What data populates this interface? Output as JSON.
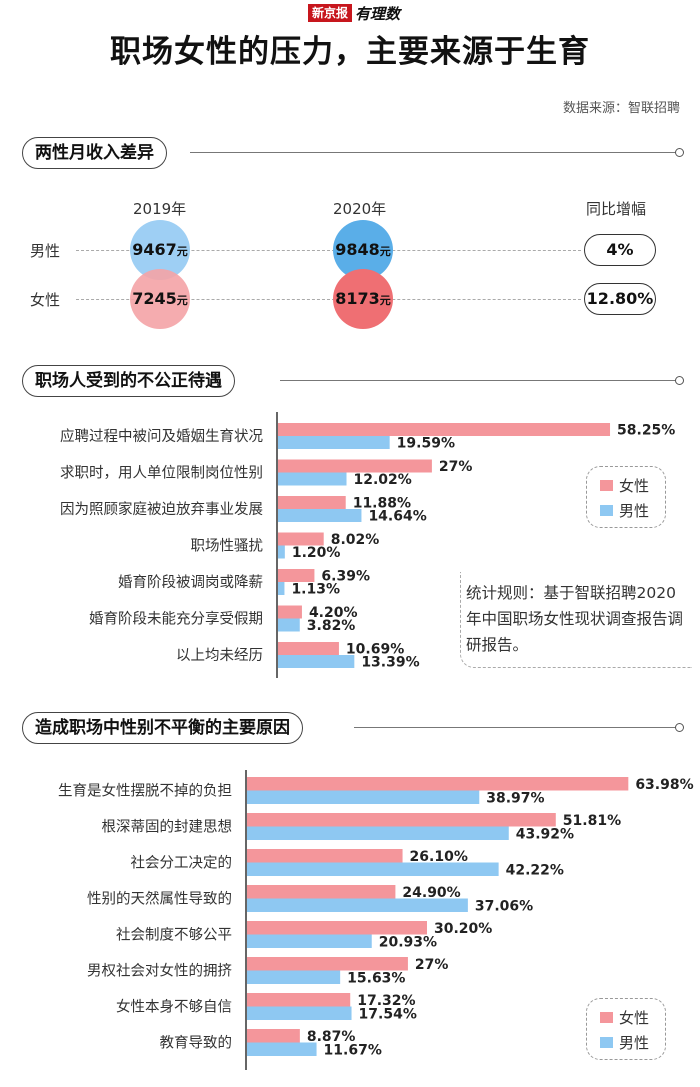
{
  "brand": {
    "box": "新京报",
    "text": "有理数"
  },
  "title": "职场女性的压力，主要来源于生育",
  "source": "数据来源：智联招聘",
  "colors": {
    "female": "#f4969b",
    "male": "#8ec8f2",
    "female_bubble": "#f28f93",
    "male_bubble_2019": "#9ecff4",
    "male_bubble_2020": "#5aaee8",
    "female_bubble_2020": "#ef6f73"
  },
  "income": {
    "section_title": "两性月收入差异",
    "year_2019": "2019年",
    "year_2020": "2020年",
    "yoy_label": "同比增幅",
    "male_label": "男性",
    "female_label": "女性",
    "male_2019": "9467",
    "male_2020": "9848",
    "female_2019": "7245",
    "female_2020": "8173",
    "unit": "元",
    "male_yoy": "4%",
    "female_yoy": "12.80%"
  },
  "unfair": {
    "section_title": "职场人受到的不公正待遇",
    "legend_female": "女性",
    "legend_male": "男性",
    "note": "统计规则：基于智联招聘2020年中国职场女性现状调查报告调研报告。"
  },
  "causes": {
    "section_title": "造成职场中性别不平衡的主要原因",
    "legend_female": "女性",
    "legend_male": "男性"
  },
  "chart_data": [
    {
      "type": "bar",
      "orientation": "horizontal",
      "title": "职场人受到的不公正待遇",
      "categories": [
        "应聘过程中被问及婚姻生育状况",
        "求职时，用人单位限制岗位性别",
        "因为照顾家庭被迫放弃事业发展",
        "职场性骚扰",
        "婚育阶段被调岗或降薪",
        "婚育阶段未能充分享受假期",
        "以上均未经历"
      ],
      "series": [
        {
          "name": "女性",
          "values": [
            58.25,
            27,
            11.88,
            8.02,
            6.39,
            4.2,
            10.69
          ],
          "labels": [
            "58.25%",
            "27%",
            "11.88%",
            "8.02%",
            "6.39%",
            "4.20%",
            "10.69%"
          ]
        },
        {
          "name": "男性",
          "values": [
            19.59,
            12.02,
            14.64,
            1.2,
            1.13,
            3.82,
            13.39
          ],
          "labels": [
            "19.59%",
            "12.02%",
            "14.64%",
            "1.20%",
            "1.13%",
            "3.82%",
            "13.39%"
          ]
        }
      ]
    },
    {
      "type": "bar",
      "orientation": "horizontal",
      "title": "造成职场中性别不平衡的主要原因",
      "categories": [
        "生育是女性摆脱不掉的负担",
        "根深蒂固的封建思想",
        "社会分工决定的",
        "性别的天然属性导致的",
        "社会制度不够公平",
        "男权社会对女性的拥挤",
        "女性本身不够自信",
        "教育导致的"
      ],
      "series": [
        {
          "name": "女性",
          "values": [
            63.98,
            51.81,
            26.1,
            24.9,
            30.2,
            27,
            17.32,
            8.87
          ],
          "labels": [
            "63.98%",
            "51.81%",
            "26.10%",
            "24.90%",
            "30.20%",
            "27%",
            "17.32%",
            "8.87%"
          ]
        },
        {
          "name": "男性",
          "values": [
            38.97,
            43.92,
            42.22,
            37.06,
            20.93,
            15.63,
            17.54,
            11.67
          ],
          "labels": [
            "38.97%",
            "43.92%",
            "42.22%",
            "37.06%",
            "20.93%",
            "15.63%",
            "17.54%",
            "11.67%"
          ]
        }
      ]
    }
  ]
}
